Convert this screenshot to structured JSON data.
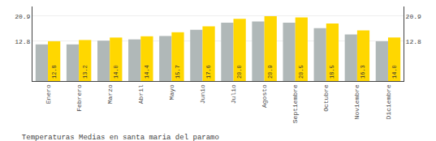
{
  "chart_data": {
    "type": "bar",
    "title": "Temperaturas Medias en santa maria del paramo",
    "categories": [
      "Enero",
      "Febrero",
      "Marzo",
      "Abril",
      "Mayo",
      "Junio",
      "Julio",
      "Agosto",
      "Septiembre",
      "Octubre",
      "Noviembre",
      "Diciembre"
    ],
    "series": [
      {
        "color": "#B0B8B8",
        "values": [
          11.8,
          11.8,
          13.0,
          13.4,
          14.5,
          16.5,
          18.8,
          19.2,
          18.8,
          17.0,
          15.0,
          12.8
        ]
      },
      {
        "color": "#FFD700",
        "values": [
          12.8,
          13.2,
          14.0,
          14.4,
          15.7,
          17.6,
          20.0,
          20.9,
          20.5,
          18.5,
          16.3,
          14.0
        ],
        "value_labels": [
          "12.8",
          "13.2",
          "14.0",
          "14.4",
          "15.7",
          "17.6",
          "20.0",
          "20.9",
          "20.5",
          "18.5",
          "16.3",
          "14.0"
        ]
      }
    ],
    "ylim": [
      0,
      24.0
    ],
    "yticks": [
      12.8,
      20.9
    ],
    "y2lim": [
      0,
      24.0
    ],
    "y2ticks": [
      12.8,
      20.9
    ],
    "grid": true,
    "data_labels": true
  }
}
